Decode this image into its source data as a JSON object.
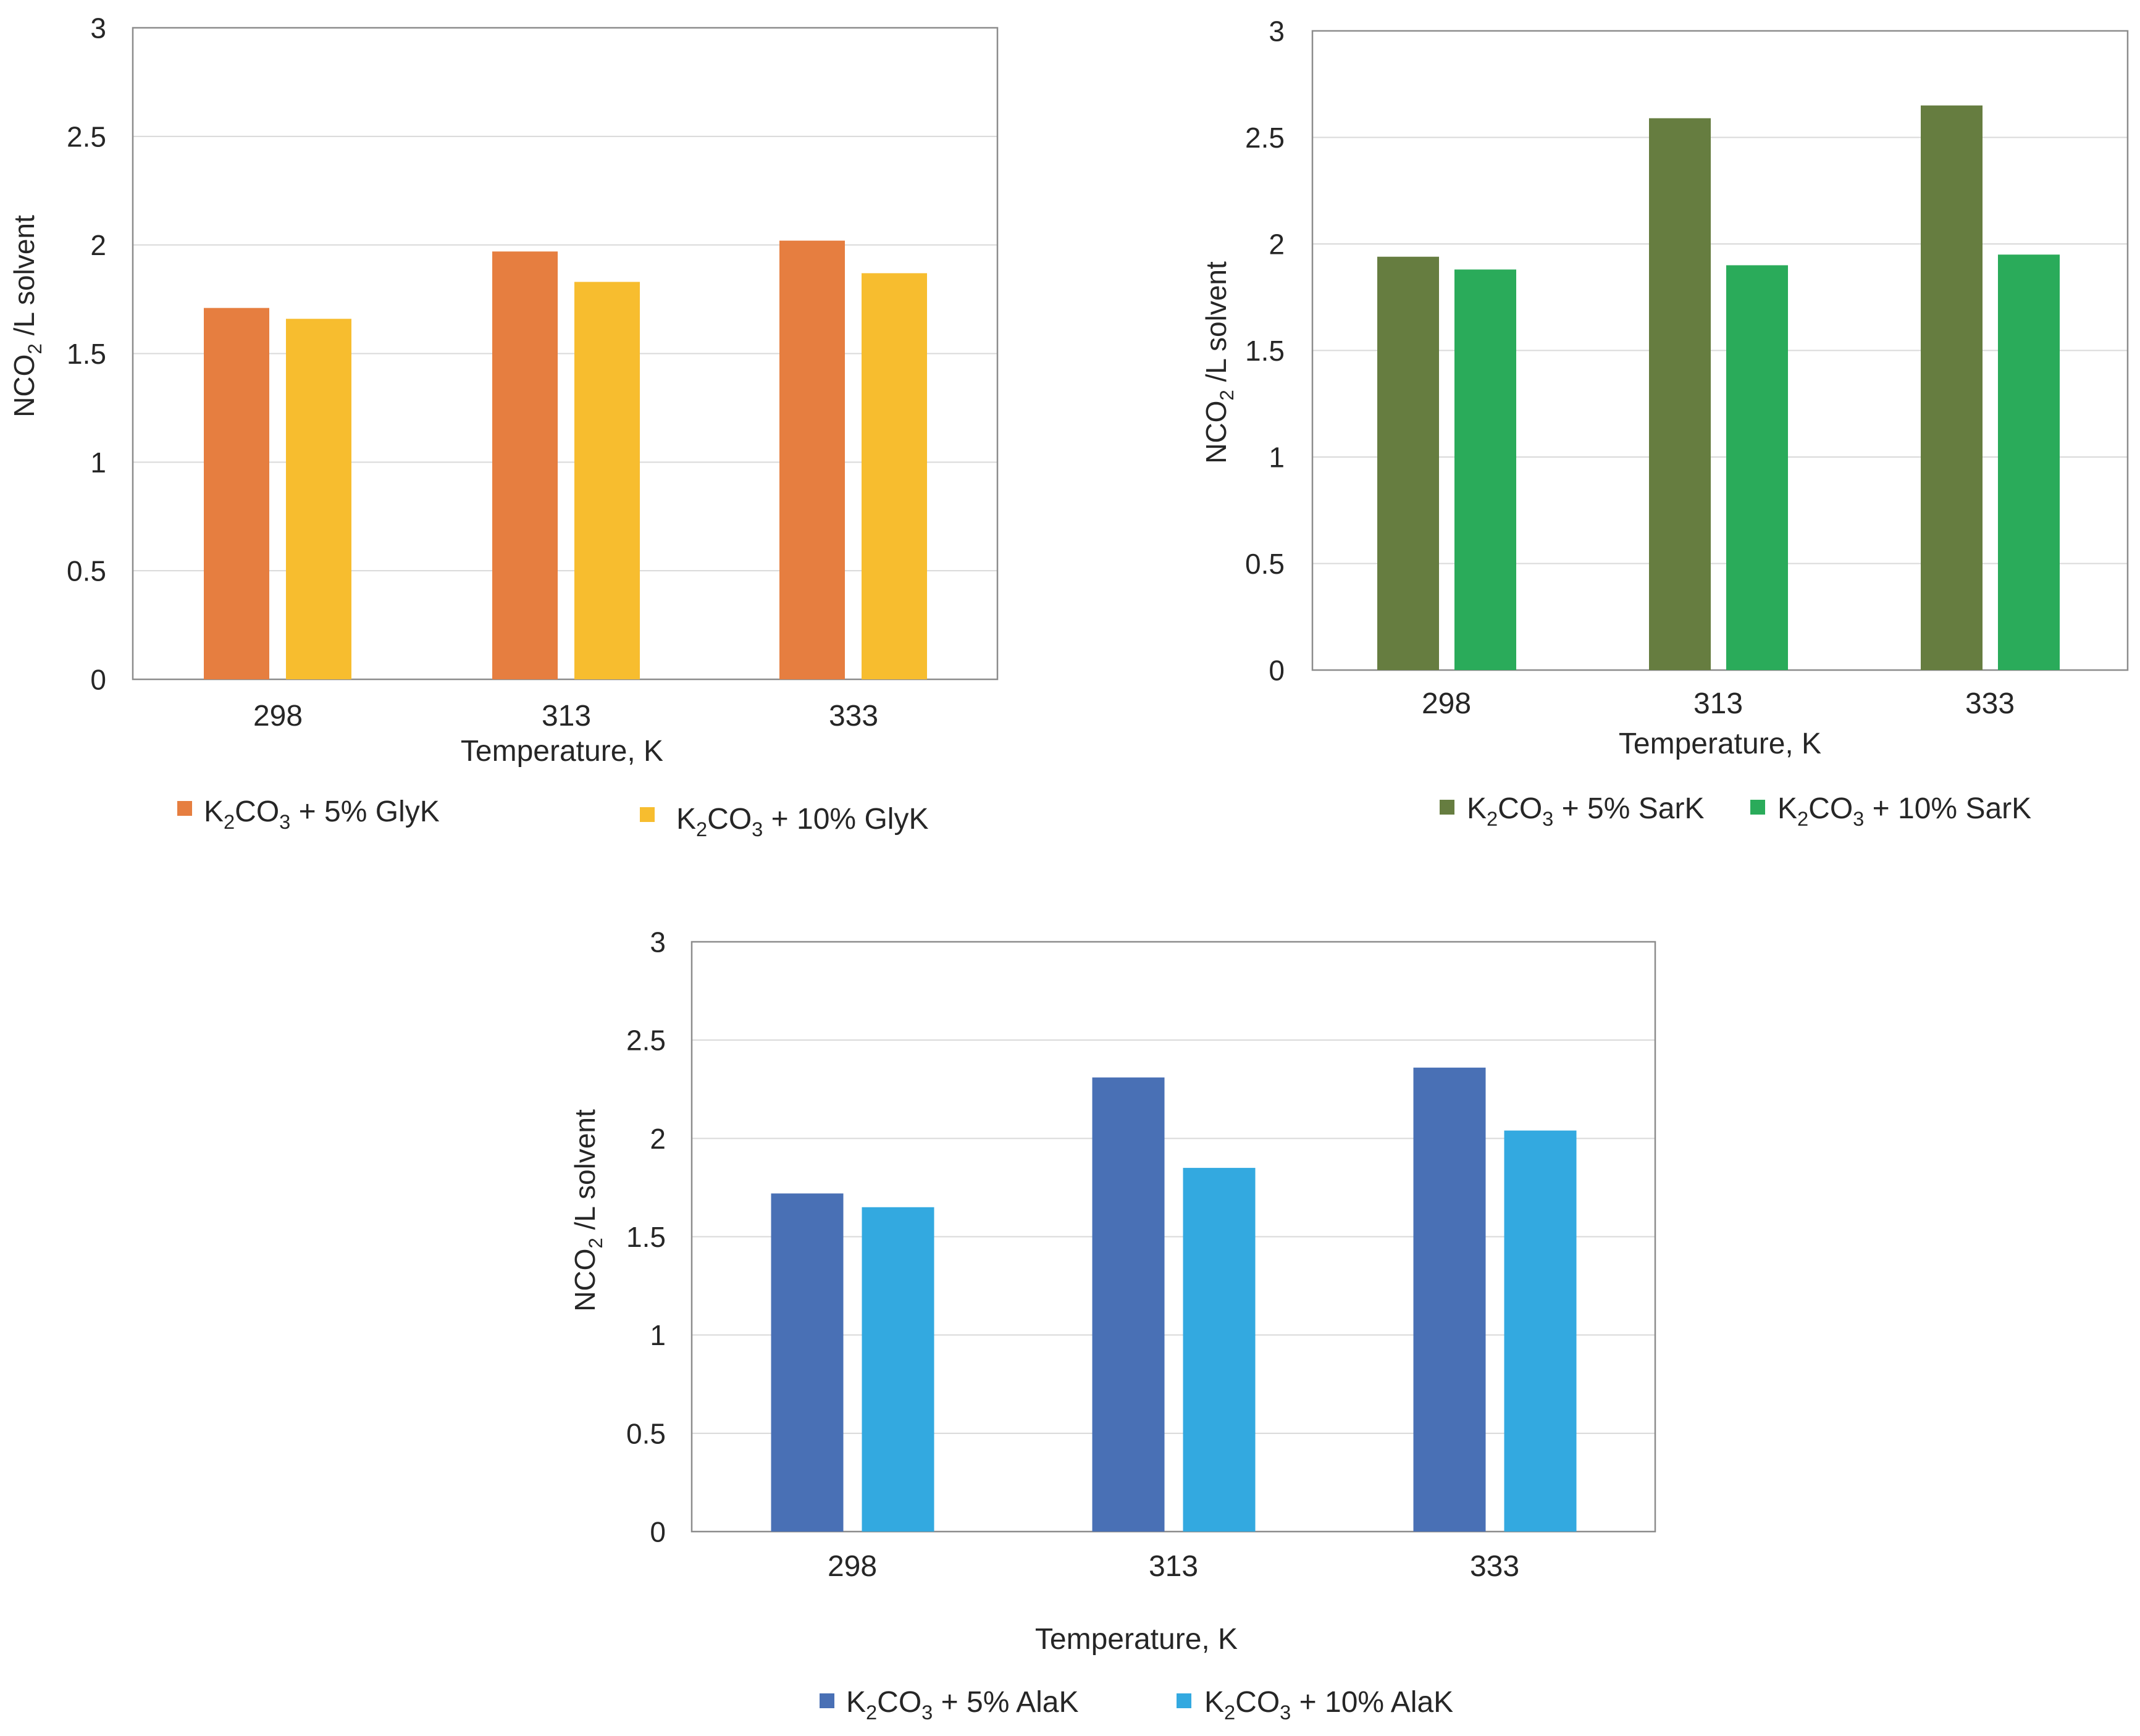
{
  "chart_data": [
    {
      "type": "bar",
      "title": "",
      "categories": [
        "298",
        "313",
        "333"
      ],
      "xlabel": "Temperature, K",
      "ylabel": {
        "main": "NCO",
        "sub": "2",
        "rest": " /L solvent"
      },
      "ylim": [
        0,
        3
      ],
      "yticks": [
        "0",
        "0.5",
        "1",
        "1.5",
        "2",
        "2.5",
        "3"
      ],
      "grid": true,
      "legend_position": "bottom",
      "series": [
        {
          "name": "K2CO3 + 5% GlyK",
          "label": {
            "a": "K",
            "b": "2",
            "c": "CO",
            "d": "3",
            "e": " + 5% GlyK"
          },
          "color": "#E67E40",
          "values": [
            1.71,
            1.97,
            2.02
          ]
        },
        {
          "name": "K2CO3 + 10% GlyK",
          "label": {
            "a": "K",
            "b": "2",
            "c": "CO",
            "d": "3",
            "e": " + 10% GlyK"
          },
          "color": "#F7BD2F",
          "values": [
            1.66,
            1.83,
            1.87
          ]
        }
      ]
    },
    {
      "type": "bar",
      "title": "",
      "categories": [
        "298",
        "313",
        "333"
      ],
      "xlabel": "Temperature, K",
      "ylabel": {
        "main": "NCO",
        "sub": "2",
        "rest": " /L solvent"
      },
      "ylim": [
        0,
        3
      ],
      "yticks": [
        "0",
        "0.5",
        "1",
        "1.5",
        "2",
        "2.5",
        "3"
      ],
      "grid": true,
      "legend_position": "bottom",
      "series": [
        {
          "name": "K2CO3 + 5% SarK",
          "label": {
            "a": "K",
            "b": "2",
            "c": "CO",
            "d": "3",
            "e": " + 5% SarK"
          },
          "color": "#667D40",
          "values": [
            1.94,
            2.59,
            2.65
          ]
        },
        {
          "name": "K2CO3 + 10% SarK",
          "label": {
            "a": "K",
            "b": "2",
            "c": "CO",
            "d": "3",
            "e": " + 10% SarK"
          },
          "color": "#2AAB5A",
          "values": [
            1.88,
            1.9,
            1.95
          ]
        }
      ]
    },
    {
      "type": "bar",
      "title": "",
      "categories": [
        "298",
        "313",
        "333"
      ],
      "xlabel": "Temperature, K",
      "ylabel": {
        "main": "NCO",
        "sub": "2",
        "rest": " /L solvent"
      },
      "ylim": [
        0,
        3
      ],
      "yticks": [
        "0",
        "0.5",
        "1",
        "1.5",
        "2",
        "2.5",
        "3"
      ],
      "grid": true,
      "legend_position": "bottom",
      "series": [
        {
          "name": "K2CO3 + 5% AlaK",
          "label": {
            "a": "K",
            "b": "2",
            "c": "CO",
            "d": "3",
            "e": " + 5% AlaK"
          },
          "color": "#4970B5",
          "values": [
            1.72,
            2.31,
            2.36
          ]
        },
        {
          "name": "K2CO3 + 10% AlaK",
          "label": {
            "a": "K",
            "b": "2",
            "c": "CO",
            "d": "3",
            "e": " + 10% AlaK"
          },
          "color": "#33A9E0",
          "values": [
            1.65,
            1.85,
            2.04
          ]
        }
      ]
    }
  ]
}
